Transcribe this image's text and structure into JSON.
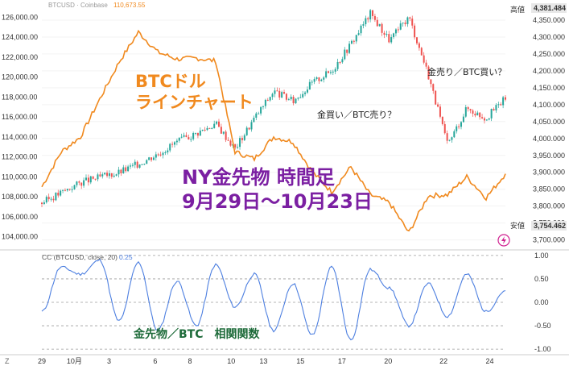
{
  "header": {
    "symbol_label": "BTCUSD · Coinbase",
    "price": "110,673.55"
  },
  "price_flags": {
    "high_label": "高値",
    "high_value": "4,381.484",
    "low_label": "安値",
    "low_value": "3,754.462"
  },
  "overlay_text": {
    "btc_line_label_1": "BTCドル",
    "btc_line_label_2": "ラインチャート",
    "main_title_1": "NY金先物 時間足",
    "main_title_2": "9月29日～10月23日",
    "buy_gold_sell_btc": "金買い／BTC売り？",
    "sell_gold_buy_btc": "金売り／BTC買い？",
    "correlation_label": "金先物／BTC　相関関数"
  },
  "indicator": {
    "label": "CC (BTCUSD, close, 20)",
    "value": "0.25"
  },
  "colors": {
    "btc_line": "#f0891e",
    "candle_up": "#26a69a",
    "candle_down": "#ef5350",
    "cc_line": "#4d7fe0",
    "title_purple": "#7b1fa2",
    "green_label": "#1e6b3a",
    "accent_purple": "#d02090"
  },
  "chart_data": [
    {
      "type": "line",
      "series": [
        {
          "name": "BTCUSD",
          "x": [
            0,
            1,
            2,
            3,
            4,
            5,
            6,
            7,
            8,
            9,
            10,
            11,
            12,
            13,
            14,
            15,
            16,
            17,
            18,
            19,
            20,
            21,
            22,
            23,
            24
          ],
          "values": [
            109000,
            112500,
            114000,
            117800,
            121500,
            124500,
            122500,
            121800,
            121900,
            121600,
            112500,
            111800,
            114000,
            113500,
            110500,
            108500,
            111000,
            108200,
            107400,
            104400,
            108100,
            108200,
            110000,
            107900,
            110300
          ]
        }
      ],
      "left_axis": {
        "ticks": [
          104000,
          106000,
          108000,
          110000,
          112000,
          114000,
          116000,
          118000,
          120000,
          122000,
          124000,
          126000
        ],
        "tick_labels": [
          "104,000.00",
          "106,000.00",
          "108,000.00",
          "110,000.00",
          "112,000.00",
          "114,000.00",
          "116,000.00",
          "118,000.00",
          "120,000.00",
          "122,000.00",
          "124,000.00",
          "126,000.00"
        ],
        "ylim": [
          103000,
          127400
        ]
      }
    },
    {
      "type": "candlestick",
      "series": [
        {
          "name": "NY金先物",
          "x": [
            0,
            1,
            2,
            3,
            4,
            5,
            6,
            7,
            8,
            9,
            10,
            11,
            12,
            13,
            14,
            15,
            16,
            17,
            18,
            19,
            20,
            21,
            22,
            23,
            24
          ],
          "values": [
            3810,
            3840,
            3870,
            3885,
            3900,
            3925,
            3955,
            3990,
            4015,
            4045,
            3970,
            4060,
            4140,
            4110,
            4165,
            4200,
            4280,
            4370,
            4290,
            4360,
            4190,
            3980,
            4090,
            4060,
            4120
          ]
        }
      ],
      "right_axis": {
        "ticks": [
          3700,
          3750,
          3800,
          3850,
          3900,
          3950,
          4000,
          4050,
          4100,
          4150,
          4200,
          4250,
          4300,
          4350
        ],
        "tick_labels": [
          "3,700.000",
          "3,750.000",
          "3,800.000",
          "3,850.000",
          "3,900.000",
          "3,950.000",
          "4,000.000",
          "4,050.000",
          "4,100.000",
          "4,150.000",
          "4,200.000",
          "4,250.000",
          "4,300.000",
          "4,350.000"
        ],
        "ylim": [
          3680,
          4400
        ]
      }
    },
    {
      "type": "line",
      "series": [
        {
          "name": "CC",
          "x": [
            0,
            1,
            2,
            3,
            4,
            5,
            6,
            7,
            8,
            9,
            10,
            11,
            12,
            13,
            14,
            15,
            16,
            17,
            18,
            19,
            20,
            21,
            22,
            23,
            24
          ],
          "values": [
            -0.2,
            0.75,
            0.6,
            0.9,
            -0.4,
            0.85,
            -0.6,
            0.45,
            -0.5,
            0.8,
            -0.1,
            0.6,
            -0.6,
            0.4,
            -0.7,
            0.75,
            -0.8,
            0.7,
            0.3,
            -0.5,
            0.4,
            -0.3,
            0.6,
            -0.2,
            0.25
          ]
        }
      ],
      "axis": {
        "ticks": [
          1.0,
          0.5,
          0.0,
          -0.5,
          -1.0
        ],
        "tick_labels": [
          "1.00",
          "0.50",
          "0.00",
          "-0.50",
          "-1.00"
        ],
        "ylim": [
          -1.05,
          1.05
        ]
      }
    }
  ],
  "x_axis": {
    "tick_labels": [
      "29",
      "10月",
      "3",
      "6",
      "8",
      "10",
      "13",
      "15",
      "17",
      "20",
      "22",
      "24"
    ],
    "tick_positions": [
      0,
      1.25,
      3,
      5,
      6.5,
      8.2,
      9.6,
      11.2,
      13.0,
      15.0,
      17.4,
      19.4
    ],
    "x_range": [
      0,
      24
    ]
  },
  "bottom_left": "Z"
}
